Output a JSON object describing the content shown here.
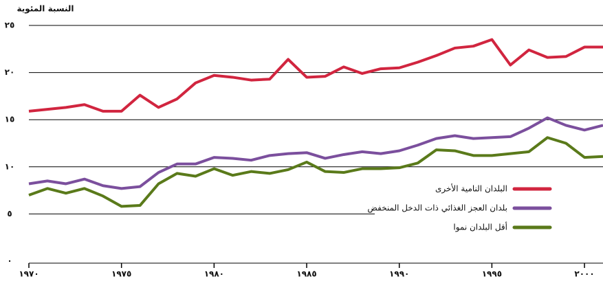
{
  "chart_data": {
    "type": "line",
    "y_label": "النسبة المئوية",
    "x": [
      1970,
      1971,
      1972,
      1973,
      1974,
      1975,
      1976,
      1977,
      1978,
      1979,
      1980,
      1981,
      1982,
      1983,
      1984,
      1985,
      1986,
      1987,
      1988,
      1989,
      1990,
      1991,
      1992,
      1993,
      1994,
      1995,
      1996,
      1997,
      1998,
      1999,
      2000,
      2001
    ],
    "series": [
      {
        "name": "البلدان النامية الأخرى",
        "color": "#d1253f",
        "values": [
          15.9,
          16.1,
          16.3,
          16.6,
          15.9,
          15.9,
          17.6,
          16.3,
          17.2,
          18.9,
          19.7,
          19.5,
          19.2,
          19.3,
          21.4,
          19.5,
          19.6,
          20.6,
          19.9,
          20.4,
          20.5,
          21.1,
          21.8,
          22.6,
          22.8,
          23.5,
          20.8,
          22.4,
          21.6,
          21.7,
          22.7,
          22.7
        ]
      },
      {
        "name": "بلدان العجز الغذائي ذات الدخل المنخفض",
        "color": "#7b4f9d",
        "values": [
          8.2,
          8.5,
          8.2,
          8.7,
          8.0,
          7.7,
          7.9,
          9.4,
          10.3,
          10.3,
          11.0,
          10.9,
          10.7,
          11.2,
          11.4,
          11.5,
          10.9,
          11.3,
          11.6,
          11.4,
          11.7,
          12.3,
          13.0,
          13.3,
          13.0,
          13.1,
          13.2,
          14.1,
          15.2,
          14.4,
          13.9,
          14.4
        ]
      },
      {
        "name": "أقل البلدان نموا",
        "color": "#5a7a1a",
        "values": [
          7.0,
          7.7,
          7.2,
          7.7,
          6.9,
          5.8,
          5.9,
          8.2,
          9.3,
          9.0,
          9.8,
          9.1,
          9.5,
          9.3,
          9.7,
          10.5,
          9.5,
          9.4,
          9.8,
          9.8,
          9.9,
          10.4,
          11.8,
          11.7,
          11.2,
          11.2,
          11.4,
          11.6,
          13.1,
          12.5,
          11.0,
          11.1
        ]
      }
    ],
    "xlim": [
      1970,
      2001
    ],
    "xticks": [
      {
        "value": 1970,
        "label": "١٩٧٠"
      },
      {
        "value": 1975,
        "label": "١٩٧٥"
      },
      {
        "value": 1980,
        "label": "١٩٨٠"
      },
      {
        "value": 1985,
        "label": "١٩٨٥"
      },
      {
        "value": 1990,
        "label": "١٩٩٠"
      },
      {
        "value": 1995,
        "label": "١٩٩٥"
      },
      {
        "value": 2000,
        "label": "٢٠٠٠"
      }
    ],
    "ylim": [
      0,
      25
    ],
    "yticks": [
      {
        "value": 0,
        "label": "٠"
      },
      {
        "value": 5,
        "label": "٥"
      },
      {
        "value": 10,
        "label": "١٠"
      },
      {
        "value": 15,
        "label": "١٥"
      },
      {
        "value": 20,
        "label": "٢٠"
      },
      {
        "value": 25,
        "label": "٢٥"
      }
    ],
    "grid": true,
    "legend": "lower right"
  }
}
